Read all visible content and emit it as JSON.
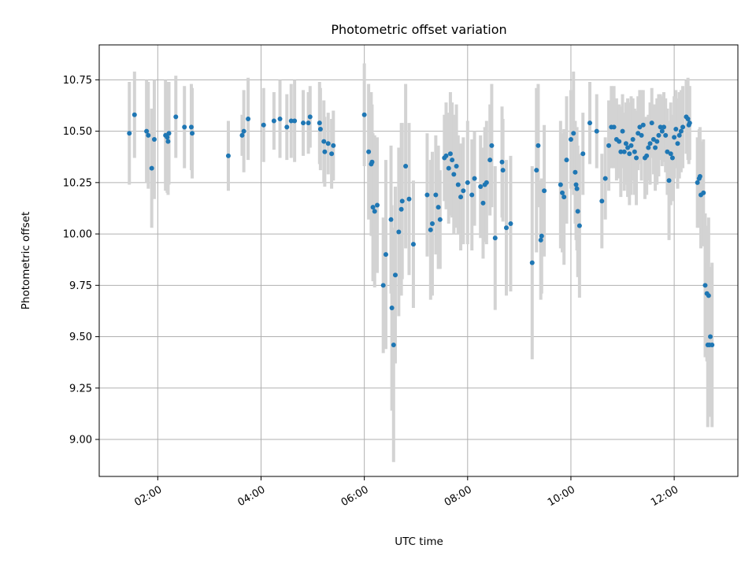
{
  "chart_data": {
    "type": "scatter",
    "title": "Photometric offset variation",
    "xlabel": "UTC time",
    "ylabel": "Photometric offset",
    "x_tick_labels": [
      "02:00",
      "04:00",
      "06:00",
      "08:00",
      "10:00",
      "12:00"
    ],
    "y_tick_labels": [
      "9.00",
      "9.25",
      "9.50",
      "9.75",
      "10.00",
      "10.25",
      "10.50",
      "10.75"
    ],
    "x_ticks": [
      "02:00",
      "04:00",
      "06:00",
      "08:00",
      "10:00",
      "12:00"
    ],
    "y_ticks": [
      9.0,
      9.25,
      9.5,
      9.75,
      10.0,
      10.25,
      10.5,
      10.75
    ],
    "xlim": [
      "00:52",
      "13:14"
    ],
    "ylim": [
      8.82,
      10.92
    ],
    "grid": true,
    "point_color": "#1f77b4",
    "errorbar_color": "#d3d3d3",
    "series": [
      {
        "x": [
          "01:27",
          "01:33",
          "01:47",
          "01:49",
          "01:53",
          "01:56",
          "02:09",
          "02:11",
          "02:12",
          "02:13",
          "02:21",
          "02:31",
          "02:39",
          "02:40",
          "03:22",
          "03:38",
          "03:40",
          "03:45",
          "04:03",
          "04:15",
          "04:22",
          "04:30",
          "04:35",
          "04:39",
          "04:49",
          "04:55",
          "04:57",
          "05:08",
          "05:09",
          "05:13",
          "05:14",
          "05:18",
          "05:22",
          "05:24",
          "06:00",
          "06:05",
          "06:08",
          "06:09",
          "06:10",
          "06:12",
          "06:15",
          "06:22",
          "06:25",
          "06:31",
          "06:32",
          "06:34",
          "06:36",
          "06:40",
          "06:43",
          "06:44",
          "06:48",
          "06:52",
          "06:57",
          "07:13",
          "07:17",
          "07:19",
          "07:23",
          "07:26",
          "07:28",
          "07:33",
          "07:35",
          "07:38",
          "07:40",
          "07:42",
          "07:44",
          "07:47",
          "07:49",
          "07:52",
          "07:55",
          "08:00",
          "08:05",
          "08:08",
          "08:15",
          "08:18",
          "08:20",
          "08:22",
          "08:26",
          "08:28",
          "08:32",
          "08:40",
          "08:41",
          "08:45",
          "08:50",
          "09:15",
          "09:20",
          "09:22",
          "09:25",
          "09:26",
          "09:29",
          "09:48",
          "09:50",
          "09:52",
          "09:55",
          "10:00",
          "10:03",
          "10:05",
          "10:06",
          "10:07",
          "10:08",
          "10:10",
          "10:14",
          "10:22",
          "10:30",
          "10:36",
          "10:40",
          "10:44",
          "10:47",
          "10:50",
          "10:53",
          "10:56",
          "10:58",
          "11:00",
          "11:02",
          "11:04",
          "11:06",
          "11:08",
          "11:10",
          "11:12",
          "11:14",
          "11:16",
          "11:18",
          "11:20",
          "11:22",
          "11:24",
          "11:26",
          "11:28",
          "11:30",
          "11:32",
          "11:34",
          "11:36",
          "11:38",
          "11:40",
          "11:42",
          "11:44",
          "11:46",
          "11:48",
          "11:50",
          "11:52",
          "11:54",
          "11:56",
          "11:58",
          "12:00",
          "12:02",
          "12:04",
          "12:06",
          "12:08",
          "12:10",
          "12:14",
          "12:16",
          "12:17",
          "12:18",
          "12:27",
          "12:29",
          "12:30",
          "12:31",
          "12:34",
          "12:36",
          "12:38",
          "12:39",
          "12:40",
          "12:41",
          "12:42",
          "12:44"
        ],
        "y": [
          10.49,
          10.58,
          10.5,
          10.48,
          10.32,
          10.46,
          10.48,
          10.47,
          10.45,
          10.49,
          10.57,
          10.52,
          10.52,
          10.49,
          10.38,
          10.48,
          10.5,
          10.56,
          10.53,
          10.55,
          10.56,
          10.52,
          10.55,
          10.55,
          10.54,
          10.54,
          10.57,
          10.54,
          10.51,
          10.45,
          10.4,
          10.44,
          10.39,
          10.43,
          10.58,
          10.4,
          10.34,
          10.35,
          10.13,
          10.11,
          10.14,
          9.75,
          9.9,
          10.07,
          9.64,
          9.46,
          9.8,
          10.01,
          10.12,
          10.16,
          10.33,
          10.17,
          9.95,
          10.19,
          10.02,
          10.05,
          10.19,
          10.13,
          10.07,
          10.37,
          10.38,
          10.32,
          10.39,
          10.36,
          10.29,
          10.33,
          10.24,
          10.18,
          10.21,
          10.25,
          10.19,
          10.27,
          10.23,
          10.15,
          10.24,
          10.25,
          10.36,
          10.43,
          9.98,
          10.35,
          10.31,
          10.03,
          10.05,
          9.86,
          10.31,
          10.43,
          9.97,
          9.99,
          10.21,
          10.24,
          10.2,
          10.18,
          10.36,
          10.46,
          10.49,
          10.3,
          10.24,
          10.22,
          10.11,
          10.04,
          10.39,
          10.54,
          10.5,
          10.16,
          10.27,
          10.43,
          10.52,
          10.52,
          10.46,
          10.45,
          10.4,
          10.5,
          10.4,
          10.44,
          10.42,
          10.39,
          10.43,
          10.46,
          10.4,
          10.37,
          10.49,
          10.52,
          10.48,
          10.53,
          10.37,
          10.38,
          10.42,
          10.44,
          10.54,
          10.46,
          10.42,
          10.45,
          10.48,
          10.52,
          10.5,
          10.52,
          10.48,
          10.4,
          10.26,
          10.39,
          10.37,
          10.47,
          10.51,
          10.44,
          10.48,
          10.5,
          10.52,
          10.57,
          10.56,
          10.53,
          10.54,
          10.25,
          10.27,
          10.28,
          10.19,
          10.2,
          9.75,
          9.71,
          9.46,
          9.7,
          9.46,
          9.5,
          9.46
        ],
        "yerr": [
          0.25,
          0.21,
          0.25,
          0.26,
          0.29,
          0.29,
          0.27,
          0.27,
          0.26,
          0.25,
          0.2,
          0.2,
          0.21,
          0.22,
          0.17,
          0.1,
          0.2,
          0.2,
          0.18,
          0.14,
          0.19,
          0.16,
          0.18,
          0.2,
          0.16,
          0.15,
          0.15,
          0.2,
          0.2,
          0.2,
          0.17,
          0.15,
          0.17,
          0.17,
          0.25,
          0.33,
          0.35,
          0.28,
          0.36,
          0.37,
          0.33,
          0.33,
          0.46,
          0.36,
          0.5,
          0.57,
          0.43,
          0.41,
          0.42,
          0.38,
          0.4,
          0.37,
          0.31,
          0.3,
          0.34,
          0.35,
          0.29,
          0.3,
          0.24,
          0.21,
          0.26,
          0.27,
          0.3,
          0.28,
          0.29,
          0.3,
          0.24,
          0.26,
          0.26,
          0.3,
          0.27,
          0.23,
          0.25,
          0.27,
          0.28,
          0.3,
          0.27,
          0.3,
          0.35,
          0.27,
          0.25,
          0.33,
          0.33,
          0.47,
          0.4,
          0.3,
          0.29,
          0.28,
          0.32,
          0.31,
          0.29,
          0.33,
          0.31,
          0.24,
          0.3,
          0.25,
          0.27,
          0.3,
          0.32,
          0.35,
          0.2,
          0.2,
          0.18,
          0.23,
          0.2,
          0.22,
          0.2,
          0.2,
          0.2,
          0.18,
          0.22,
          0.18,
          0.19,
          0.2,
          0.24,
          0.25,
          0.24,
          0.2,
          0.21,
          0.23,
          0.18,
          0.18,
          0.22,
          0.17,
          0.2,
          0.19,
          0.16,
          0.2,
          0.17,
          0.17,
          0.21,
          0.21,
          0.2,
          0.16,
          0.17,
          0.17,
          0.18,
          0.21,
          0.29,
          0.25,
          0.21,
          0.2,
          0.19,
          0.22,
          0.21,
          0.2,
          0.2,
          0.18,
          0.2,
          0.19,
          0.18,
          0.22,
          0.24,
          0.24,
          0.26,
          0.26,
          0.35,
          0.33,
          0.4,
          0.38,
          0.35,
          0.34,
          0.4
        ]
      }
    ]
  }
}
